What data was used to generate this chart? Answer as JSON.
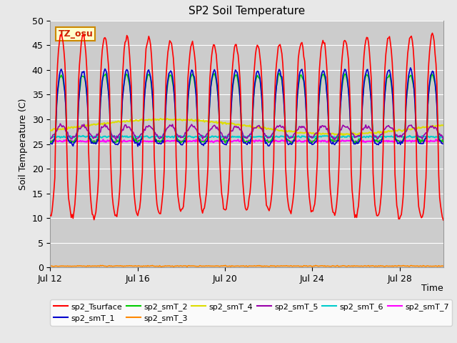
{
  "title": "SP2 Soil Temperature",
  "xlabel": "Time",
  "ylabel": "Soil Temperature (C)",
  "ylim": [
    0,
    50
  ],
  "yticks": [
    0,
    5,
    10,
    15,
    20,
    25,
    30,
    35,
    40,
    45,
    50
  ],
  "xtick_labels": [
    "Jul 12",
    "Jul 16",
    "Jul 20",
    "Jul 24",
    "Jul 28"
  ],
  "xtick_positions": [
    0,
    4,
    8,
    12,
    16
  ],
  "xlim": [
    0,
    18
  ],
  "annotation_text": "TZ_osu",
  "annotation_color": "#cc2200",
  "annotation_bg": "#ffffcc",
  "annotation_border": "#cc8800",
  "series": {
    "sp2_Tsurface": {
      "color": "#ff0000",
      "lw": 1.2
    },
    "sp2_smT_1": {
      "color": "#0000cc",
      "lw": 1.2
    },
    "sp2_smT_2": {
      "color": "#00cc00",
      "lw": 1.2
    },
    "sp2_smT_3": {
      "color": "#ff8800",
      "lw": 1.2
    },
    "sp2_smT_4": {
      "color": "#dddd00",
      "lw": 1.5
    },
    "sp2_smT_5": {
      "color": "#9900aa",
      "lw": 1.2
    },
    "sp2_smT_6": {
      "color": "#00cccc",
      "lw": 1.5
    },
    "sp2_smT_7": {
      "color": "#ff00ff",
      "lw": 1.5
    }
  },
  "fig_bg": "#e8e8e8",
  "plot_bg": "#cccccc",
  "title_fontsize": 11,
  "axis_fontsize": 9,
  "tick_fontsize": 9
}
